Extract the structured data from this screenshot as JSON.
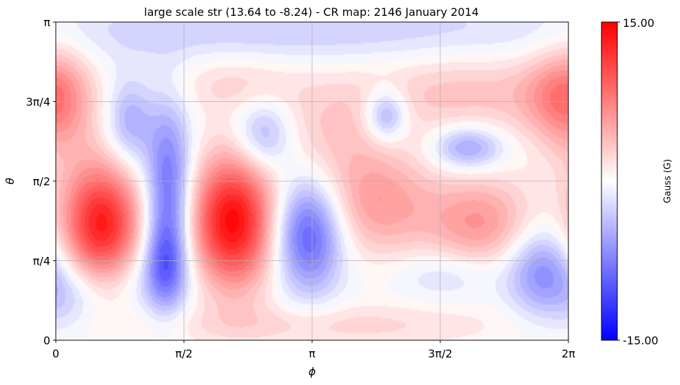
{
  "chart_data": {
    "type": "heatmap",
    "title": "large scale str (13.64 to -8.24) - CR map: 2146 January 2014",
    "xlabel": "ϕ",
    "ylabel": "θ",
    "x_ticks": [
      "0",
      "π/2",
      "π",
      "3π/2",
      "2π"
    ],
    "y_ticks": [
      "0",
      "π/4",
      "π/2",
      "3π/4",
      "π"
    ],
    "xlim": [
      0,
      6.2832
    ],
    "ylim": [
      0,
      3.1416
    ],
    "grid": true,
    "colorbar": {
      "label": "Gauss (G)",
      "min": -15.0,
      "max": 15.0,
      "min_label": "-15.00",
      "max_label": "15.00",
      "colormap": "bwr"
    },
    "features": [
      {
        "phi": 0.56,
        "theta": 1.13,
        "value": 13.5,
        "sphi": 0.34,
        "stheta": 0.44
      },
      {
        "phi": 2.17,
        "theta": 1.17,
        "value": 14.5,
        "sphi": 0.36,
        "stheta": 0.46
      },
      {
        "phi": 3.95,
        "theta": 1.34,
        "value": 5.5,
        "sphi": 0.5,
        "stheta": 0.36
      },
      {
        "phi": 5.2,
        "theta": 1.16,
        "value": 6.0,
        "sphi": 0.46,
        "stheta": 0.32
      },
      {
        "phi": 3.4,
        "theta": 2.04,
        "value": 3.0,
        "sphi": 0.55,
        "stheta": 0.42
      },
      {
        "phi": 5.0,
        "theta": 2.45,
        "value": 3.5,
        "sphi": 0.85,
        "stheta": 0.3
      },
      {
        "phi": 6.15,
        "theta": 2.4,
        "value": 4.0,
        "sphi": 0.35,
        "stheta": 0.3
      },
      {
        "phi": 0.05,
        "theta": 2.35,
        "value": 4.0,
        "sphi": 0.3,
        "stheta": 0.45
      },
      {
        "phi": 2.2,
        "theta": 2.55,
        "value": 2.5,
        "sphi": 0.55,
        "stheta": 0.22
      },
      {
        "phi": 3.3,
        "theta": 0.15,
        "value": 2.5,
        "sphi": 1.5,
        "stheta": 0.15
      },
      {
        "phi": 1.38,
        "theta": 1.55,
        "value": -8.5,
        "sphi": 0.2,
        "stheta": 0.55
      },
      {
        "phi": 1.35,
        "theta": 0.75,
        "value": -7.0,
        "sphi": 0.18,
        "stheta": 0.32
      },
      {
        "phi": 0.9,
        "theta": 2.15,
        "value": -5.0,
        "sphi": 0.2,
        "stheta": 0.3
      },
      {
        "phi": 3.1,
        "theta": 1.05,
        "value": -10.0,
        "sphi": 0.3,
        "stheta": 0.4
      },
      {
        "phi": 2.55,
        "theta": 2.02,
        "value": -5.5,
        "sphi": 0.25,
        "stheta": 0.25
      },
      {
        "phi": 4.05,
        "theta": 2.22,
        "value": -6.5,
        "sphi": 0.18,
        "stheta": 0.18
      },
      {
        "phi": 5.05,
        "theta": 1.9,
        "value": -6.0,
        "sphi": 0.3,
        "stheta": 0.15
      },
      {
        "phi": 5.95,
        "theta": 0.68,
        "value": -6.5,
        "sphi": 0.3,
        "stheta": 0.3
      },
      {
        "phi": 1.0,
        "theta": 0.6,
        "value": -2.5,
        "sphi": 0.5,
        "stheta": 0.25
      },
      {
        "phi": 4.8,
        "theta": 0.65,
        "value": -2.5,
        "sphi": 0.45,
        "stheta": 0.18
      },
      {
        "phi": 0.2,
        "theta": 0.45,
        "value": -3.0,
        "sphi": 0.3,
        "stheta": 0.25
      },
      {
        "phi": 3.0,
        "theta": 3.05,
        "value": -3.0,
        "sphi": 3.0,
        "stheta": 0.25
      }
    ]
  }
}
